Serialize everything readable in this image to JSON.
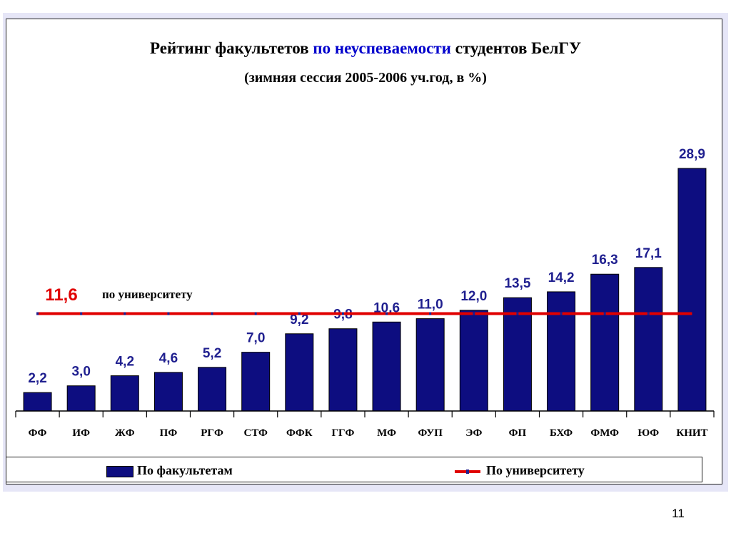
{
  "title": {
    "part1": "Рейтинг факультетов ",
    "highlight": "по  неуспеваемости",
    "part2": " студентов БелГУ"
  },
  "subtitle": "(зимняя сессия 2005-2006 уч.год, в %)",
  "chart_data": {
    "type": "bar",
    "categories": [
      "ФФ",
      "ИФ",
      "ЖФ",
      "ПФ",
      "РГФ",
      "СТФ",
      "ФФК",
      "ГГФ",
      "МФ",
      "ФУП",
      "ЭФ",
      "ФП",
      "БХФ",
      "ФМФ",
      "ЮФ",
      "КНИТ"
    ],
    "series": [
      {
        "name": "По факультетам",
        "values": [
          2.2,
          3.0,
          4.2,
          4.6,
          5.2,
          7.0,
          9.2,
          9.8,
          10.6,
          11.0,
          12.0,
          13.5,
          14.2,
          16.3,
          17.1,
          28.9
        ],
        "labels": [
          "2,2",
          "3,0",
          "4,2",
          "4,6",
          "5,2",
          "7,0",
          "9,2",
          "9,8",
          "10,6",
          "11,0",
          "12,0",
          "13,5",
          "14,2",
          "16,3",
          "17,1",
          "28,9"
        ],
        "color": "#0d0d80"
      },
      {
        "name": "По университету",
        "type": "line",
        "value": 11.6,
        "color": "#e00000"
      }
    ],
    "reference_line": {
      "value_label": "11,6",
      "note": "по университету"
    },
    "ylim": [
      0,
      30
    ],
    "grid": false,
    "legend_position": "bottom"
  },
  "legend": {
    "bars_label": "По факультетам",
    "line_label": "По университету"
  },
  "page_number": "11"
}
